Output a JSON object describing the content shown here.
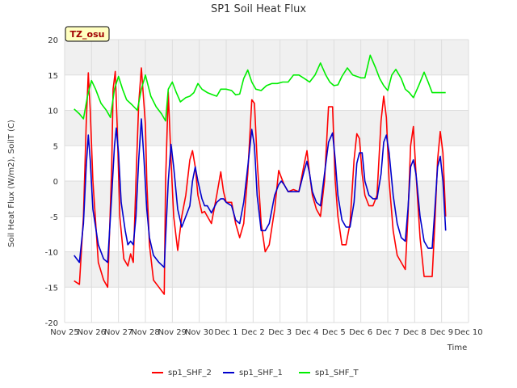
{
  "chart_data": {
    "type": "line",
    "title": "SP1 Soil Heat Flux",
    "xlabel": "Time",
    "ylabel": "Soil Heat Flux (W/m2), SoilT (C)",
    "site_label": "TZ_osu",
    "ylim": [
      -20,
      20
    ],
    "yticks": [
      -20,
      -15,
      -10,
      -5,
      0,
      5,
      10,
      15,
      20
    ],
    "xlim": [
      0,
      15
    ],
    "xticks": [
      0,
      1,
      2,
      3,
      4,
      5,
      6,
      7,
      8,
      9,
      10,
      11,
      12,
      13,
      14,
      15
    ],
    "xtick_labels": [
      "Nov 25",
      "Nov 26",
      "Nov 27",
      "Nov 28",
      "Nov 29",
      "Nov 30",
      "Dec 1",
      "Dec 2",
      "Dec 3",
      "Dec 4",
      "Dec 5",
      "Dec 6",
      "Dec 7",
      "Dec 8",
      "Dec 9",
      "Dec 10"
    ],
    "grid": true,
    "legend_position": "bottom",
    "series": [
      {
        "name": "sp1_SHF_2",
        "color": "#ff0000",
        "x": [
          0.35,
          0.55,
          0.7,
          0.8,
          0.88,
          0.95,
          1.05,
          1.25,
          1.45,
          1.6,
          1.75,
          1.8,
          1.88,
          1.95,
          2.05,
          2.2,
          2.35,
          2.45,
          2.55,
          2.65,
          2.75,
          2.85,
          3.0,
          3.05,
          3.15,
          3.3,
          3.5,
          3.7,
          3.75,
          3.85,
          3.95,
          4.05,
          4.2,
          4.35,
          4.5,
          4.65,
          4.75,
          4.85,
          4.95,
          5.1,
          5.2,
          5.3,
          5.45,
          5.65,
          5.8,
          5.9,
          6.0,
          6.2,
          6.35,
          6.5,
          6.65,
          6.8,
          6.95,
          7.05,
          7.15,
          7.3,
          7.45,
          7.6,
          7.8,
          7.95,
          8.05,
          8.15,
          8.3,
          8.5,
          8.7,
          8.9,
          9.0,
          9.1,
          9.2,
          9.35,
          9.5,
          9.65,
          9.8,
          9.95,
          10.05,
          10.15,
          10.3,
          10.45,
          10.6,
          10.75,
          10.85,
          10.95,
          11.05,
          11.15,
          11.3,
          11.45,
          11.6,
          11.75,
          11.85,
          11.95,
          12.05,
          12.2,
          12.35,
          12.5,
          12.65,
          12.75,
          12.85,
          12.95,
          13.05,
          13.2,
          13.35,
          13.5,
          13.65,
          13.75,
          13.85,
          13.95,
          14.05,
          14.15
        ],
        "values": [
          -14.1,
          -14.6,
          -5.0,
          8.0,
          15.3,
          10.0,
          0.0,
          -11.5,
          -14.0,
          -15.0,
          2.0,
          13.0,
          15.5,
          8.0,
          -5.0,
          -11.0,
          -12.0,
          -10.3,
          -11.5,
          0.0,
          11.0,
          16.0,
          8.0,
          0.0,
          -9.0,
          -14.0,
          -15.0,
          -16.0,
          0.0,
          12.6,
          3.0,
          -5.0,
          -9.8,
          -5.0,
          -2.0,
          3.0,
          4.3,
          2.0,
          -2.0,
          -4.5,
          -4.3,
          -5.0,
          -6.0,
          -2.0,
          1.3,
          -1.5,
          -3.0,
          -3.0,
          -6.0,
          -8.0,
          -6.0,
          1.0,
          11.5,
          11.0,
          3.0,
          -6.0,
          -10.0,
          -9.0,
          -4.0,
          1.5,
          0.5,
          -0.5,
          -1.5,
          -1.2,
          -1.5,
          2.5,
          4.3,
          1.0,
          -2.0,
          -4.0,
          -5.0,
          0.0,
          10.5,
          10.5,
          0.0,
          -5.0,
          -9.0,
          -9.0,
          -6.0,
          3.0,
          6.7,
          6.0,
          1.0,
          -2.0,
          -3.5,
          -3.5,
          -2.0,
          8.5,
          12.0,
          9.0,
          0.0,
          -7.0,
          -10.5,
          -11.5,
          -12.5,
          -5.0,
          5.0,
          7.7,
          1.0,
          -8.0,
          -13.5,
          -13.5,
          -13.5,
          -6.0,
          3.0,
          7.0,
          4.0,
          -5.0
        ]
      },
      {
        "name": "sp1_SHF_1",
        "color": "#0000cc",
        "x": [
          0.35,
          0.55,
          0.7,
          0.8,
          0.88,
          0.95,
          1.05,
          1.25,
          1.45,
          1.6,
          1.75,
          1.85,
          1.92,
          2.0,
          2.1,
          2.25,
          2.35,
          2.45,
          2.55,
          2.65,
          2.75,
          2.85,
          2.95,
          3.05,
          3.15,
          3.3,
          3.5,
          3.7,
          3.85,
          3.95,
          4.05,
          4.2,
          4.35,
          4.5,
          4.65,
          4.75,
          4.85,
          4.95,
          5.1,
          5.2,
          5.3,
          5.45,
          5.65,
          5.8,
          5.9,
          6.0,
          6.2,
          6.35,
          6.5,
          6.65,
          6.8,
          6.95,
          7.05,
          7.15,
          7.3,
          7.45,
          7.6,
          7.8,
          7.95,
          8.05,
          8.15,
          8.3,
          8.5,
          8.7,
          8.9,
          9.0,
          9.1,
          9.2,
          9.35,
          9.5,
          9.65,
          9.8,
          9.95,
          10.05,
          10.15,
          10.3,
          10.45,
          10.6,
          10.75,
          10.85,
          10.95,
          11.05,
          11.15,
          11.3,
          11.45,
          11.6,
          11.75,
          11.85,
          11.95,
          12.05,
          12.2,
          12.35,
          12.5,
          12.65,
          12.75,
          12.85,
          12.95,
          13.05,
          13.2,
          13.35,
          13.5,
          13.65,
          13.75,
          13.85,
          13.95,
          14.05,
          14.15
        ],
        "values": [
          -10.5,
          -11.5,
          -6.0,
          2.0,
          6.5,
          3.0,
          -4.0,
          -9.0,
          -11.0,
          -11.5,
          -2.0,
          5.0,
          7.5,
          4.0,
          -3.0,
          -7.0,
          -9.0,
          -8.5,
          -9.0,
          -5.0,
          3.0,
          8.8,
          3.0,
          -4.0,
          -8.0,
          -10.5,
          -11.5,
          -12.2,
          0.0,
          5.2,
          2.0,
          -4.0,
          -6.5,
          -5.0,
          -3.5,
          0.0,
          2.0,
          0.0,
          -2.5,
          -3.5,
          -3.5,
          -4.5,
          -3.0,
          -2.5,
          -2.5,
          -3.0,
          -3.5,
          -5.5,
          -6.0,
          -3.0,
          2.0,
          7.3,
          5.0,
          -2.0,
          -7.0,
          -7.0,
          -6.0,
          -2.0,
          -0.5,
          0.0,
          -0.5,
          -1.5,
          -1.5,
          -1.5,
          1.5,
          2.8,
          1.0,
          -1.5,
          -3.0,
          -3.5,
          1.0,
          5.5,
          6.8,
          3.0,
          -2.0,
          -5.5,
          -6.5,
          -6.5,
          -3.0,
          2.5,
          4.0,
          4.0,
          0.0,
          -2.0,
          -2.5,
          -2.5,
          1.0,
          5.5,
          6.5,
          4.0,
          -2.0,
          -6.0,
          -8.0,
          -8.5,
          -4.0,
          2.0,
          3.0,
          1.0,
          -5.0,
          -8.5,
          -9.5,
          -9.5,
          -4.0,
          2.0,
          3.5,
          0.0,
          -7.0
        ]
      },
      {
        "name": "sp1_SHF_T",
        "color": "#00ee00",
        "x": [
          0.35,
          0.55,
          0.7,
          0.85,
          1.0,
          1.15,
          1.35,
          1.55,
          1.7,
          1.85,
          2.0,
          2.15,
          2.3,
          2.5,
          2.7,
          2.85,
          3.0,
          3.2,
          3.4,
          3.6,
          3.75,
          3.85,
          4.0,
          4.15,
          4.3,
          4.5,
          4.65,
          4.8,
          4.95,
          5.1,
          5.3,
          5.5,
          5.65,
          5.8,
          6.0,
          6.2,
          6.35,
          6.5,
          6.65,
          6.8,
          6.95,
          7.1,
          7.3,
          7.5,
          7.7,
          7.9,
          8.1,
          8.3,
          8.5,
          8.7,
          8.9,
          9.1,
          9.3,
          9.5,
          9.7,
          9.85,
          10.0,
          10.15,
          10.3,
          10.5,
          10.7,
          10.85,
          11.0,
          11.15,
          11.35,
          11.55,
          11.7,
          11.85,
          12.0,
          12.15,
          12.3,
          12.5,
          12.65,
          12.8,
          12.95,
          13.15,
          13.35,
          13.5,
          13.65,
          13.8,
          13.95,
          14.05,
          14.15
        ],
        "values": [
          10.2,
          9.5,
          8.8,
          12.0,
          14.2,
          13.0,
          11.0,
          10.0,
          9.0,
          13.0,
          14.8,
          13.0,
          11.5,
          10.8,
          10.0,
          13.0,
          15.0,
          12.0,
          10.5,
          9.5,
          8.5,
          13.0,
          14.0,
          12.5,
          11.2,
          11.8,
          12.0,
          12.5,
          13.8,
          13.0,
          12.5,
          12.2,
          12.0,
          13.0,
          13.0,
          12.8,
          12.2,
          12.3,
          14.5,
          15.7,
          14.0,
          13.0,
          12.8,
          13.5,
          13.8,
          13.8,
          14.0,
          14.0,
          15.0,
          15.0,
          14.5,
          14.0,
          15.0,
          16.7,
          15.0,
          14.0,
          13.5,
          13.6,
          14.8,
          16.0,
          15.0,
          14.8,
          14.6,
          14.6,
          17.8,
          16.0,
          14.5,
          13.5,
          12.8,
          15.0,
          15.8,
          14.5,
          13.0,
          12.5,
          11.8,
          13.5,
          15.4,
          14.0,
          12.5,
          12.5,
          12.5,
          12.5,
          12.5
        ]
      }
    ]
  }
}
